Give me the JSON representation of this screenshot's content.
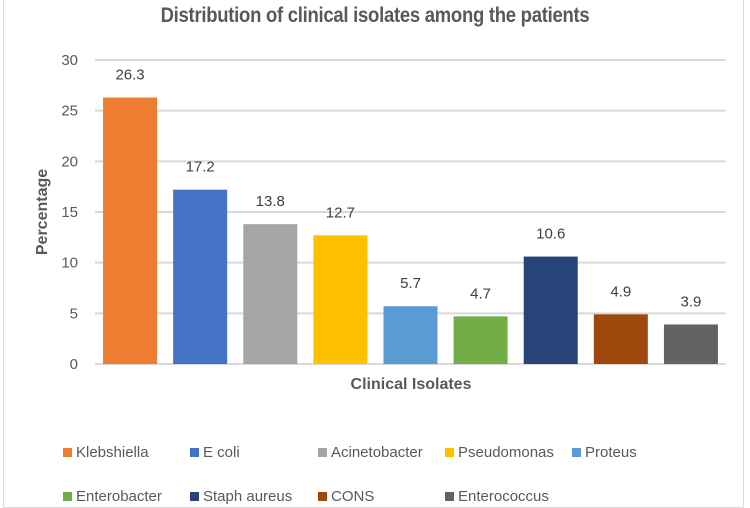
{
  "chart_data": {
    "type": "bar",
    "title": "Distribution of clinical isolates among the patients",
    "xlabel": "Clinical Isolates",
    "ylabel": "Percentage",
    "ylim": [
      0,
      30
    ],
    "yticks": [
      0,
      5,
      10,
      15,
      20,
      25,
      30
    ],
    "grid": true,
    "legend_position": "bottom",
    "categories": [
      "Klebshiella",
      "E coli",
      "Acinetobacter",
      "Pseudomonas",
      "Proteus",
      "Enterobacter",
      "Staph aureus",
      "CONS",
      "Enterococcus"
    ],
    "values": [
      26.3,
      17.2,
      13.8,
      12.7,
      5.7,
      4.7,
      10.6,
      4.9,
      3.9
    ],
    "data_labels": [
      "26.3",
      "17.2",
      "13.8",
      "12.7",
      "5.7",
      "4.7",
      "10.6",
      "4.9",
      "3.9"
    ],
    "colors": [
      "#ed7d31",
      "#4472c4",
      "#a5a5a5",
      "#ffc000",
      "#5b9bd5",
      "#70ad47",
      "#264478",
      "#9e480e",
      "#636363"
    ]
  }
}
